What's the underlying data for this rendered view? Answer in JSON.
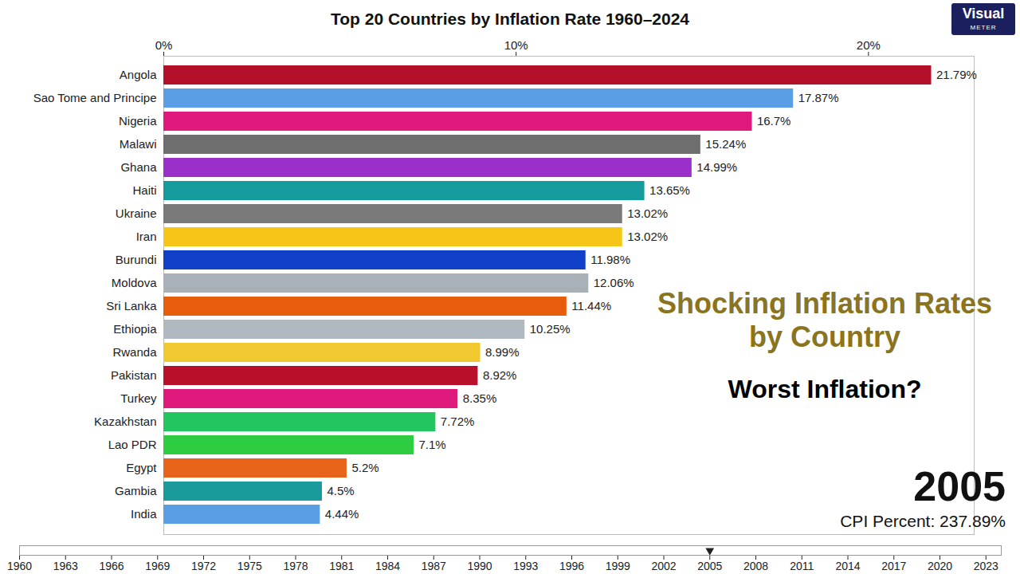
{
  "chart_data": {
    "type": "bar",
    "orientation": "horizontal",
    "title": "Top 20 Countries by Inflation Rate 1960–2024",
    "categories": [
      "Angola",
      "Sao Tome and Principe",
      "Nigeria",
      "Malawi",
      "Ghana",
      "Haiti",
      "Ukraine",
      "Iran",
      "Burundi",
      "Moldova",
      "Sri Lanka",
      "Ethiopia",
      "Rwanda",
      "Pakistan",
      "Turkey",
      "Kazakhstan",
      "Lao PDR",
      "Egypt",
      "Gambia",
      "India"
    ],
    "values": [
      21.79,
      17.87,
      16.7,
      15.24,
      14.99,
      13.65,
      13.02,
      13.02,
      11.98,
      12.06,
      11.44,
      10.25,
      8.99,
      8.92,
      8.35,
      7.72,
      7.1,
      5.2,
      4.5,
      4.44
    ],
    "value_labels": [
      "21.79%",
      "17.87%",
      "16.7%",
      "15.24%",
      "14.99%",
      "13.65%",
      "13.02%",
      "13.02%",
      "11.98%",
      "12.06%",
      "11.44%",
      "10.25%",
      "8.99%",
      "8.92%",
      "8.35%",
      "7.72%",
      "7.1%",
      "5.2%",
      "4.5%",
      "4.44%"
    ],
    "colors": [
      "#b5102a",
      "#5a9fe6",
      "#e0197d",
      "#6e6e6e",
      "#9b2fc9",
      "#149b9b",
      "#7a7a7a",
      "#f5c518",
      "#1040c8",
      "#a8b0b8",
      "#e85d0c",
      "#b0b8c0",
      "#f2c830",
      "#b8102a",
      "#e0197d",
      "#22c55e",
      "#2ecc40",
      "#e8641a",
      "#1a9a9a",
      "#5a9fe6"
    ],
    "xlim": [
      0,
      23
    ],
    "xticks": [
      {
        "value": 0,
        "label": "0%"
      },
      {
        "value": 10,
        "label": "10%"
      },
      {
        "value": 20,
        "label": "20%"
      }
    ],
    "grid": false,
    "data_labels": true,
    "annotations": {
      "headline": "Shocking Inflation Rates by Country",
      "question": "Worst Inflation?",
      "year": "2005",
      "caption": "CPI Percent: 237.89%"
    },
    "logo": [
      "Visual",
      "METER"
    ],
    "timeline": {
      "xlim": [
        1960,
        2024
      ],
      "xticks": [
        1960,
        1963,
        1966,
        1969,
        1972,
        1975,
        1978,
        1981,
        1984,
        1987,
        1990,
        1993,
        1996,
        1999,
        2002,
        2005,
        2008,
        2011,
        2014,
        2017,
        2020,
        2023
      ],
      "value": 2005
    }
  }
}
